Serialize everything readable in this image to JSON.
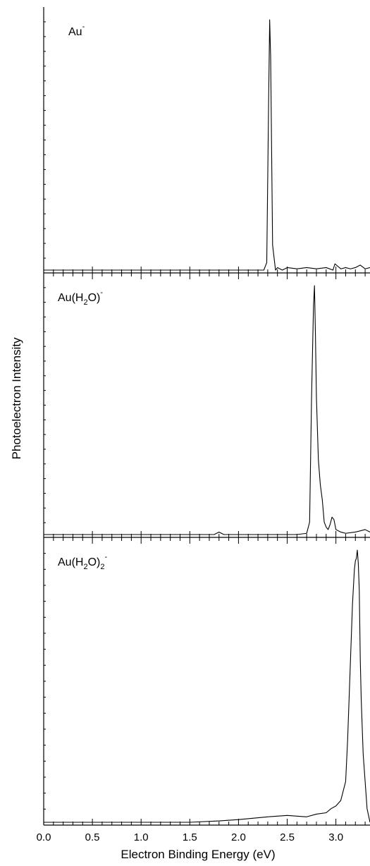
{
  "chart_data": [
    {
      "type": "line",
      "label": {
        "base": "Au",
        "sub": "",
        "mid": "",
        "sup": "-"
      },
      "xlabel": "Electron Binding Energy (eV)",
      "ylabel": "Photoelectron Intensity",
      "xlim": [
        0.0,
        3.35
      ],
      "ylim": [
        0,
        1
      ],
      "x": [
        0.0,
        0.25,
        0.5,
        0.75,
        1.0,
        1.25,
        1.5,
        1.75,
        2.0,
        2.2,
        2.26,
        2.29,
        2.31,
        2.32,
        2.33,
        2.35,
        2.38,
        2.4,
        2.45,
        2.5,
        2.6,
        2.7,
        2.8,
        2.9,
        2.97,
        2.99,
        3.05,
        3.1,
        3.15,
        3.2,
        3.25,
        3.3,
        3.35
      ],
      "y": [
        0.0,
        0.0,
        0.0,
        0.0,
        0.0,
        0.0,
        0.0,
        0.0,
        0.0,
        0.0,
        0.0,
        0.03,
        0.7,
        1.0,
        0.85,
        0.1,
        0.0,
        0.01,
        0.0,
        0.01,
        0.005,
        0.01,
        0.005,
        0.01,
        0.0,
        0.025,
        0.005,
        0.01,
        0.005,
        0.01,
        0.02,
        0.005,
        0.01
      ]
    },
    {
      "type": "line",
      "label": {
        "base": "Au(H",
        "sub": "2",
        "mid": "O)",
        "sup": "-"
      },
      "xlabel": "Electron Binding Energy (eV)",
      "ylabel": "Photoelectron Intensity",
      "xlim": [
        0.0,
        3.35
      ],
      "ylim": [
        0,
        1
      ],
      "x": [
        0.0,
        0.5,
        1.0,
        1.5,
        1.75,
        1.8,
        1.85,
        2.0,
        2.2,
        2.4,
        2.6,
        2.7,
        2.73,
        2.75,
        2.77,
        2.78,
        2.79,
        2.8,
        2.82,
        2.84,
        2.86,
        2.88,
        2.9,
        2.92,
        2.94,
        2.96,
        2.98,
        3.0,
        3.05,
        3.1,
        3.2,
        3.3,
        3.35
      ],
      "y": [
        0.0,
        0.0,
        0.0,
        0.0,
        0.0,
        0.01,
        0.0,
        0.0,
        0.0,
        0.0,
        0.0,
        0.005,
        0.05,
        0.55,
        0.92,
        1.0,
        0.8,
        0.55,
        0.3,
        0.2,
        0.14,
        0.05,
        0.03,
        0.02,
        0.04,
        0.07,
        0.06,
        0.02,
        0.01,
        0.005,
        0.01,
        0.02,
        0.01
      ]
    },
    {
      "type": "line",
      "label": {
        "base": "Au(H",
        "sub": "2",
        "mid": "O)",
        "sub2": "2",
        "sup": "-"
      },
      "xlabel": "Electron Binding Energy (eV)",
      "ylabel": "Photoelectron Intensity",
      "xlim": [
        0.0,
        3.35
      ],
      "ylim": [
        0,
        1
      ],
      "x": [
        0.0,
        0.5,
        1.0,
        1.5,
        1.8,
        2.0,
        2.3,
        2.5,
        2.7,
        2.8,
        2.9,
        2.95,
        3.0,
        3.05,
        3.1,
        3.12,
        3.15,
        3.17,
        3.19,
        3.2,
        3.21,
        3.22,
        3.23,
        3.24,
        3.25,
        3.26,
        3.27,
        3.28,
        3.3,
        3.32,
        3.35
      ],
      "y": [
        0.0,
        0.0,
        0.0,
        0.0,
        0.005,
        0.01,
        0.02,
        0.025,
        0.02,
        0.03,
        0.035,
        0.05,
        0.06,
        0.08,
        0.15,
        0.3,
        0.6,
        0.8,
        0.93,
        0.96,
        0.97,
        1.0,
        0.95,
        0.85,
        0.6,
        0.45,
        0.35,
        0.25,
        0.15,
        0.05,
        0.0
      ]
    }
  ],
  "x_axis": {
    "ticks": [
      "0.0",
      "0.5",
      "1.0",
      "1.5",
      "2.0",
      "2.5",
      "3.0"
    ],
    "title": "Electron Binding Energy (eV)"
  },
  "y_axis": {
    "title": "Photoelectron Intensity"
  }
}
